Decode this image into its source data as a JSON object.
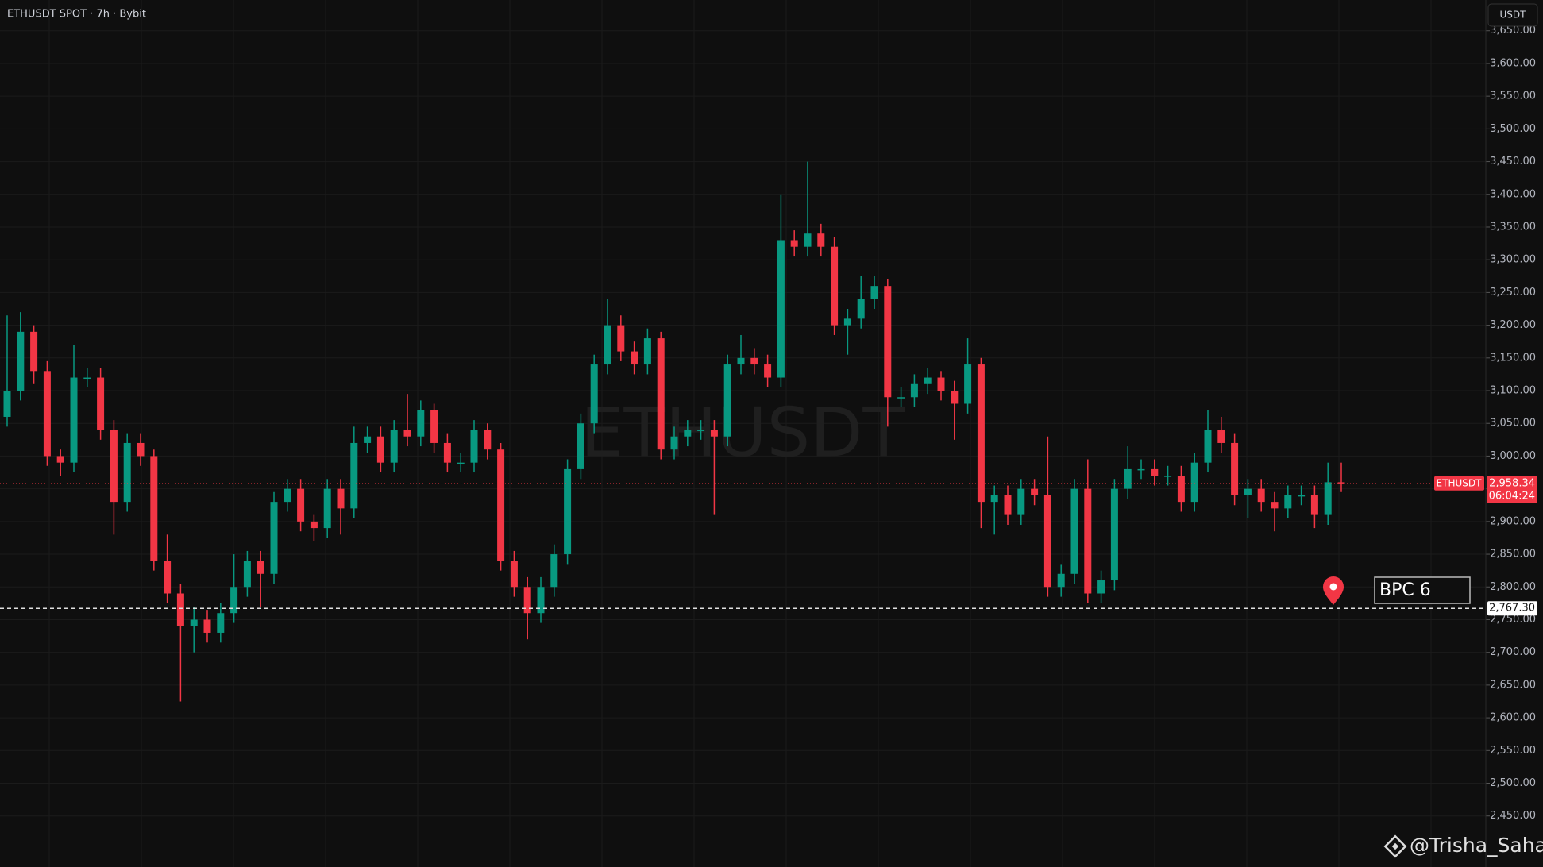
{
  "chart_data": {
    "type": "candlestick",
    "title": "ETHUSDT SPOT · 7h · Bybit",
    "currency": "USDT",
    "watermark": "ETHUSDT",
    "symbol_tag": "ETHUSDT",
    "up_color": "#089981",
    "down_color": "#f23645",
    "ylim": [
      2372,
      3697
    ],
    "yticks": [
      {
        "value": 2450,
        "label": "2,450.00"
      },
      {
        "value": 2500,
        "label": "2,500.00"
      },
      {
        "value": 2550,
        "label": "2,550.00"
      },
      {
        "value": 2600,
        "label": "2,600.00"
      },
      {
        "value": 2650,
        "label": "2,650.00"
      },
      {
        "value": 2700,
        "label": "2,700.00"
      },
      {
        "value": 2750,
        "label": "2,750.00"
      },
      {
        "value": 2800,
        "label": "2,800.00"
      },
      {
        "value": 2850,
        "label": "2,850.00"
      },
      {
        "value": 2900,
        "label": "2,900.00"
      },
      {
        "value": 2950,
        "label": "2,950.00"
      },
      {
        "value": 3000,
        "label": "3,000.00"
      },
      {
        "value": 3050,
        "label": "3,050.00"
      },
      {
        "value": 3100,
        "label": "3,100.00"
      },
      {
        "value": 3150,
        "label": "3,150.00"
      },
      {
        "value": 3200,
        "label": "3,200.00"
      },
      {
        "value": 3250,
        "label": "3,250.00"
      },
      {
        "value": 3300,
        "label": "3,300.00"
      },
      {
        "value": 3350,
        "label": "3,350.00"
      },
      {
        "value": 3400,
        "label": "3,400.00"
      },
      {
        "value": 3450,
        "label": "3,450.00"
      },
      {
        "value": 3500,
        "label": "3,500.00"
      },
      {
        "value": 3550,
        "label": "3,550.00"
      },
      {
        "value": 3600,
        "label": "3,600.00"
      },
      {
        "value": 3650,
        "label": "3,650.00"
      }
    ],
    "grid": true,
    "ohlc": [
      [
        3060,
        3215,
        3045,
        3100
      ],
      [
        3100,
        3220,
        3085,
        3190
      ],
      [
        3190,
        3200,
        3110,
        3130
      ],
      [
        3130,
        3145,
        2985,
        3000
      ],
      [
        3000,
        3010,
        2970,
        2990
      ],
      [
        2990,
        3170,
        2975,
        3120
      ],
      [
        3120,
        3135,
        3105,
        3120
      ],
      [
        3120,
        3135,
        3025,
        3040
      ],
      [
        3040,
        3055,
        2880,
        2930
      ],
      [
        2930,
        3035,
        2915,
        3020
      ],
      [
        3020,
        3035,
        2985,
        3000
      ],
      [
        3000,
        3010,
        2825,
        2840
      ],
      [
        2840,
        2880,
        2775,
        2790
      ],
      [
        2790,
        2805,
        2625,
        2740
      ],
      [
        2740,
        2770,
        2700,
        2750
      ],
      [
        2750,
        2765,
        2715,
        2730
      ],
      [
        2730,
        2775,
        2715,
        2760
      ],
      [
        2760,
        2850,
        2745,
        2800
      ],
      [
        2800,
        2855,
        2785,
        2840
      ],
      [
        2840,
        2855,
        2770,
        2820
      ],
      [
        2820,
        2945,
        2805,
        2930
      ],
      [
        2930,
        2965,
        2915,
        2950
      ],
      [
        2950,
        2965,
        2885,
        2900
      ],
      [
        2900,
        2910,
        2870,
        2890
      ],
      [
        2890,
        2965,
        2875,
        2950
      ],
      [
        2950,
        2965,
        2880,
        2920
      ],
      [
        2920,
        3045,
        2905,
        3020
      ],
      [
        3020,
        3045,
        3005,
        3030
      ],
      [
        3030,
        3045,
        2975,
        2990
      ],
      [
        2990,
        3055,
        2975,
        3040
      ],
      [
        3040,
        3095,
        3015,
        3030
      ],
      [
        3030,
        3085,
        3015,
        3070
      ],
      [
        3070,
        3080,
        3005,
        3020
      ],
      [
        3020,
        3035,
        2975,
        2990
      ],
      [
        2990,
        3005,
        2975,
        2990
      ],
      [
        2990,
        3055,
        2975,
        3040
      ],
      [
        3040,
        3050,
        2995,
        3010
      ],
      [
        3010,
        3020,
        2825,
        2840
      ],
      [
        2840,
        2855,
        2785,
        2800
      ],
      [
        2800,
        2815,
        2720,
        2760
      ],
      [
        2760,
        2815,
        2745,
        2800
      ],
      [
        2800,
        2865,
        2785,
        2850
      ],
      [
        2850,
        2995,
        2835,
        2980
      ],
      [
        2980,
        3065,
        2965,
        3050
      ],
      [
        3050,
        3155,
        3035,
        3140
      ],
      [
        3140,
        3240,
        3125,
        3200
      ],
      [
        3200,
        3215,
        3145,
        3160
      ],
      [
        3160,
        3175,
        3125,
        3140
      ],
      [
        3140,
        3195,
        3125,
        3180
      ],
      [
        3180,
        3190,
        2995,
        3010
      ],
      [
        3010,
        3045,
        2995,
        3030
      ],
      [
        3030,
        3055,
        3015,
        3040
      ],
      [
        3040,
        3055,
        3025,
        3040
      ],
      [
        3040,
        3055,
        2910,
        3030
      ],
      [
        3030,
        3155,
        3015,
        3140
      ],
      [
        3140,
        3185,
        3125,
        3150
      ],
      [
        3150,
        3165,
        3125,
        3140
      ],
      [
        3140,
        3155,
        3105,
        3120
      ],
      [
        3120,
        3400,
        3105,
        3330
      ],
      [
        3330,
        3345,
        3305,
        3320
      ],
      [
        3320,
        3450,
        3305,
        3340
      ],
      [
        3340,
        3355,
        3305,
        3320
      ],
      [
        3320,
        3335,
        3185,
        3200
      ],
      [
        3200,
        3225,
        3155,
        3210
      ],
      [
        3210,
        3275,
        3195,
        3240
      ],
      [
        3240,
        3275,
        3225,
        3260
      ],
      [
        3260,
        3270,
        3045,
        3090
      ],
      [
        3090,
        3105,
        3075,
        3090
      ],
      [
        3090,
        3125,
        3075,
        3110
      ],
      [
        3110,
        3135,
        3095,
        3120
      ],
      [
        3120,
        3130,
        3085,
        3100
      ],
      [
        3100,
        3115,
        3025,
        3080
      ],
      [
        3080,
        3180,
        3065,
        3140
      ],
      [
        3140,
        3150,
        2890,
        2930
      ],
      [
        2930,
        2955,
        2880,
        2940
      ],
      [
        2940,
        2955,
        2895,
        2910
      ],
      [
        2910,
        2965,
        2895,
        2950
      ],
      [
        2950,
        2965,
        2925,
        2940
      ],
      [
        2940,
        3030,
        2785,
        2800
      ],
      [
        2800,
        2835,
        2785,
        2820
      ],
      [
        2820,
        2965,
        2805,
        2950
      ],
      [
        2950,
        2995,
        2775,
        2790
      ],
      [
        2790,
        2825,
        2775,
        2810
      ],
      [
        2810,
        2965,
        2795,
        2950
      ],
      [
        2950,
        3015,
        2935,
        2980
      ],
      [
        2980,
        2995,
        2965,
        2980
      ],
      [
        2980,
        2995,
        2955,
        2970
      ],
      [
        2970,
        2985,
        2955,
        2970
      ],
      [
        2970,
        2985,
        2915,
        2930
      ],
      [
        2930,
        3005,
        2915,
        2990
      ],
      [
        2990,
        3070,
        2975,
        3040
      ],
      [
        3040,
        3060,
        3005,
        3020
      ],
      [
        3020,
        3035,
        2925,
        2940
      ],
      [
        2940,
        2965,
        2905,
        2950
      ],
      [
        2950,
        2965,
        2915,
        2930
      ],
      [
        2930,
        2945,
        2885,
        2920
      ],
      [
        2920,
        2955,
        2905,
        2940
      ],
      [
        2940,
        2955,
        2925,
        2940
      ],
      [
        2940,
        2955,
        2890,
        2910
      ],
      [
        2910,
        2990,
        2895,
        2960
      ],
      [
        2960,
        2990,
        2945,
        2958.34
      ]
    ],
    "last_price": {
      "value": 2958.34,
      "label": "2,958.34"
    },
    "countdown": "06:04:24",
    "level": {
      "value": 2767.3,
      "label": "2,767.30"
    },
    "annotation": "BPC 6",
    "credit": "@Trisha_Saha"
  }
}
